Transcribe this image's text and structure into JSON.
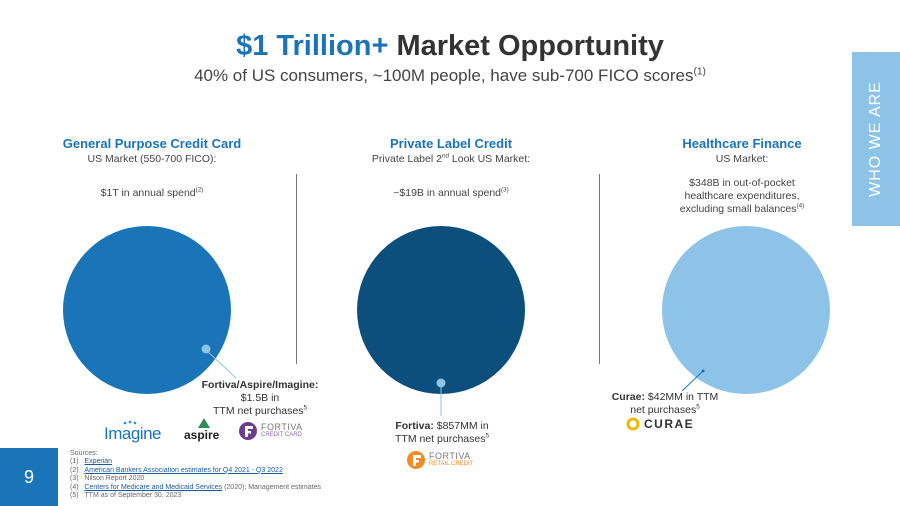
{
  "header": {
    "title_accent": "$1 Trillion+",
    "title_rest": " Market Opportunity",
    "subtitle": "40% of US consumers, ~100M people, have sub-700 FICO scores",
    "subtitle_sup": "(1)"
  },
  "side_tab": {
    "label": "WHO WE ARE",
    "color": "#8ec3e8"
  },
  "columns": [
    {
      "title": "General Purpose Credit Card",
      "market": "US Market (550-700 FICO):",
      "spend": "$1T in annual spend",
      "spend_sup": "(2)",
      "circle_color": "#1a74b8",
      "callout_bold": "Fortiva/Aspire/Imagine:",
      "callout_line2": "$1.5B in",
      "callout_line3": "TTM net purchases",
      "callout_sup": "5",
      "logos": [
        "Imagine",
        "aspire",
        "FORTIVA",
        "CREDIT CARD"
      ]
    },
    {
      "title": "Private Label Credit",
      "market_pre": "Private Label 2",
      "market_sup": "nd",
      "market_post": " Look US Market:",
      "spend": "~$19B in annual spend",
      "spend_sup": "(3)",
      "circle_color": "#0d4f7c",
      "callout_bold": "Fortiva:",
      "callout_line1_rest": " $857MM in",
      "callout_line2": "TTM net purchases",
      "callout_sup": "5",
      "logos": [
        "FORTIVA",
        "RETAIL CREDIT"
      ]
    },
    {
      "title": "Healthcare Finance",
      "market": "US Market:",
      "spend_line1": "$348B in out-of-pocket",
      "spend_line2": "healthcare expenditures,",
      "spend_line3": "excluding small balances",
      "spend_sup": "(4)",
      "circle_color": "#8ec3e8",
      "callout_bold": "Curae:",
      "callout_line1_rest": " $42MM in TTM",
      "callout_line2": "net purchases",
      "callout_sup": "5",
      "logos": [
        "CURAE"
      ]
    }
  ],
  "sources": {
    "heading": "Sources:",
    "items": [
      {
        "num": "(1)",
        "text": "Experian",
        "linked": true
      },
      {
        "num": "(2)",
        "text": "American Bankers Association estimates for Q4 2021 - Q3 2022",
        "linked": true
      },
      {
        "num": "(3)",
        "text": "Nilson Report 2020",
        "linked": false
      },
      {
        "num": "(4)",
        "text": "Centers for Medicare and Medicaid Services",
        "linked": true,
        "after": " (2020); Management estimates"
      },
      {
        "num": "(5)",
        "text": "TTM as of September 30, 2023",
        "linked": false
      }
    ]
  },
  "page_number": "9"
}
